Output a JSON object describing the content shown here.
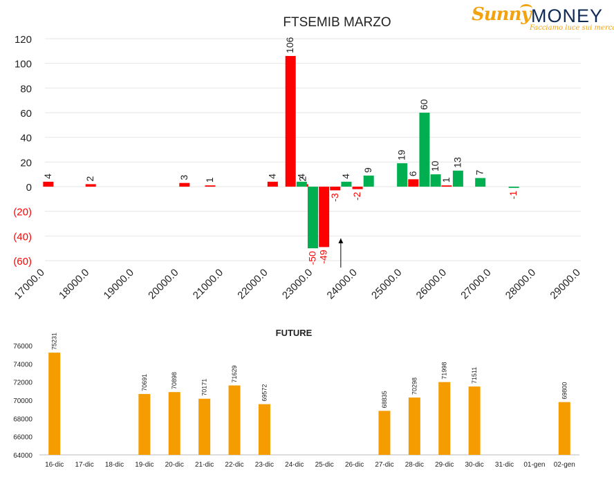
{
  "logo": {
    "brand_part1": "Sunny",
    "brand_part2": "MONEY",
    "tagline": "Facciamo luce sui mercati"
  },
  "colors": {
    "positive": "#00b050",
    "negative": "#ff0000",
    "future": "#f59c00",
    "neg_label": "#ff0000",
    "axis": "#222222"
  },
  "chart_data": [
    {
      "type": "bar",
      "title": "FTSEMIB MARZO",
      "ylim": [
        -60,
        120
      ],
      "yticks": [
        {
          "v": 120,
          "label": "120"
        },
        {
          "v": 100,
          "label": "100"
        },
        {
          "v": 80,
          "label": "80"
        },
        {
          "v": 60,
          "label": "60"
        },
        {
          "v": 40,
          "label": "40"
        },
        {
          "v": 20,
          "label": "20"
        },
        {
          "v": 0,
          "label": "0"
        },
        {
          "v": -20,
          "label": "(20)"
        },
        {
          "v": -40,
          "label": "(40)"
        },
        {
          "v": -60,
          "label": "(60)"
        }
      ],
      "xlim": [
        17000,
        29000
      ],
      "xticks": [
        "17000.0",
        "18000.0",
        "19000.0",
        "20000.0",
        "21000.0",
        "22000.0",
        "23000.0",
        "24000.0",
        "25000.0",
        "26000.0",
        "27000.0",
        "28000.0",
        "29000.0"
      ],
      "grid": true,
      "annotation": {
        "type": "arrow",
        "x": 23625,
        "y_from": -60,
        "y_to": -42
      },
      "series": [
        {
          "color_key": "negative",
          "points": [
            {
              "x": 17075,
              "y": 4
            },
            {
              "x": 18025,
              "y": 2
            },
            {
              "x": 20125,
              "y": 3
            },
            {
              "x": 20700,
              "y": 1
            },
            {
              "x": 22100,
              "y": 4
            },
            {
              "x": 22500,
              "y": 106
            },
            {
              "x": 22780,
              "y": 2
            },
            {
              "x": 23250,
              "y": -49
            },
            {
              "x": 23500,
              "y": -3
            },
            {
              "x": 24000,
              "y": -2
            },
            {
              "x": 25250,
              "y": 6
            },
            {
              "x": 25995,
              "y": 1
            }
          ]
        },
        {
          "color_key": "positive",
          "points": [
            {
              "x": 22750,
              "y": 4
            },
            {
              "x": 23000,
              "y": -50
            },
            {
              "x": 23750,
              "y": 4
            },
            {
              "x": 24250,
              "y": 9
            },
            {
              "x": 25000,
              "y": 19
            },
            {
              "x": 25500,
              "y": 60
            },
            {
              "x": 25750,
              "y": 10
            },
            {
              "x": 26250,
              "y": 13
            },
            {
              "x": 26750,
              "y": 7
            },
            {
              "x": 27500,
              "y": -1
            }
          ]
        }
      ]
    },
    {
      "type": "bar",
      "title": "FUTURE",
      "ylim": [
        64000,
        76000
      ],
      "yticks": [
        "76000",
        "74000",
        "72000",
        "70000",
        "68000",
        "66000",
        "64000"
      ],
      "categories": [
        "16-dic",
        "17-dic",
        "18-dic",
        "19-dic",
        "20-dic",
        "21-dic",
        "22-dic",
        "23-dic",
        "24-dic",
        "25-dic",
        "26-dic",
        "27-dic",
        "28-dic",
        "29-dic",
        "30-dic",
        "31-dic",
        "01-gen",
        "02-gen"
      ],
      "values": [
        75231,
        null,
        null,
        70691,
        70898,
        70171,
        71629,
        69572,
        null,
        null,
        null,
        68835,
        70298,
        71998,
        71511,
        null,
        null,
        69800
      ],
      "labels": [
        "75231",
        "",
        "",
        "70691",
        "70898",
        "70171",
        "71629",
        "69572",
        "",
        "",
        "",
        "68835",
        "70298",
        "71998",
        "71511",
        "",
        "",
        "69800"
      ]
    }
  ]
}
